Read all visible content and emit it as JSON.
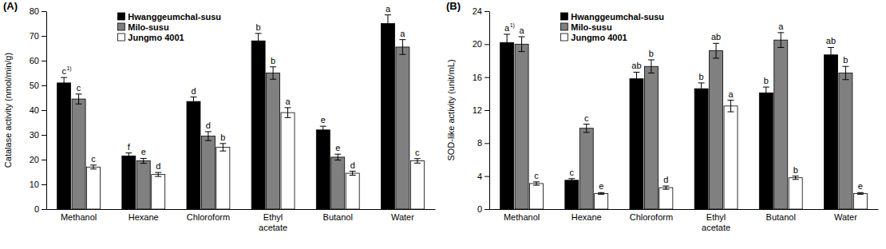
{
  "chart_data": [
    {
      "type": "bar",
      "title": "(A)",
      "y_label": "Catalase activity (nmol/min/g)",
      "categories": [
        "Methanol",
        "Hexane",
        "Chloroform",
        "Ethyl acetate",
        "Butanol",
        "Water"
      ],
      "ylim": [
        0,
        80
      ],
      "yticks": [
        0,
        10,
        20,
        30,
        40,
        50,
        60,
        70,
        80
      ],
      "grid": false,
      "legend": "upper left",
      "letter_superscript": "1)",
      "series": [
        {
          "name": "Hwanggeumchal-susu",
          "color": "#000000",
          "values": [
            51,
            21.5,
            43.5,
            68,
            32,
            75
          ],
          "errors": [
            2.2,
            1.2,
            1.8,
            3,
            1.5,
            3.5
          ],
          "letters": [
            "c",
            "f",
            "d",
            "b",
            "e",
            "a"
          ]
        },
        {
          "name": "Milo-susu",
          "color": "#808080",
          "values": [
            44.5,
            19.5,
            29.5,
            55,
            21,
            65.5
          ],
          "errors": [
            2,
            1,
            1.8,
            2.5,
            1.2,
            3
          ],
          "letters": [
            "c",
            "e",
            "d",
            "b",
            "e",
            "a"
          ]
        },
        {
          "name": "Jungmo 4001",
          "color": "#ffffff",
          "values": [
            17,
            14,
            25,
            39,
            14.5,
            19.5
          ],
          "errors": [
            0.8,
            0.8,
            1.5,
            2,
            0.8,
            0.9
          ],
          "letters": [
            "c",
            "d",
            "b",
            "a",
            "d",
            "c"
          ]
        }
      ]
    },
    {
      "type": "bar",
      "title": "(B)",
      "y_label": "SOD-like activity (unit/mL)",
      "categories": [
        "Methanol",
        "Hexane",
        "Chloroform",
        "Ethyl acetate",
        "Butanol",
        "Water"
      ],
      "ylim": [
        0,
        24
      ],
      "yticks": [
        0,
        4,
        8,
        12,
        16,
        20,
        24
      ],
      "grid": false,
      "legend": "upper left",
      "letter_superscript": "1)",
      "series": [
        {
          "name": "Hwanggeumchal-susu",
          "color": "#000000",
          "values": [
            20.2,
            3.5,
            15.8,
            14.6,
            14.1,
            18.7
          ],
          "errors": [
            1,
            0.2,
            0.8,
            0.7,
            0.7,
            0.9
          ],
          "letters": [
            "a",
            "c",
            "ab",
            "b",
            "b",
            "ab"
          ]
        },
        {
          "name": "Milo-susu",
          "color": "#808080",
          "values": [
            20,
            9.8,
            17.3,
            19.2,
            20.5,
            16.5
          ],
          "errors": [
            0.9,
            0.5,
            0.8,
            0.9,
            0.9,
            0.8
          ],
          "letters": [
            "a",
            "c",
            "b",
            "ab",
            "a",
            "b"
          ]
        },
        {
          "name": "Jungmo 4001",
          "color": "#ffffff",
          "values": [
            3.1,
            1.9,
            2.6,
            12.5,
            3.8,
            1.9
          ],
          "errors": [
            0.2,
            0.1,
            0.2,
            0.7,
            0.2,
            0.1
          ],
          "letters": [
            "c",
            "e",
            "d",
            "a",
            "b",
            "e"
          ]
        }
      ]
    }
  ]
}
